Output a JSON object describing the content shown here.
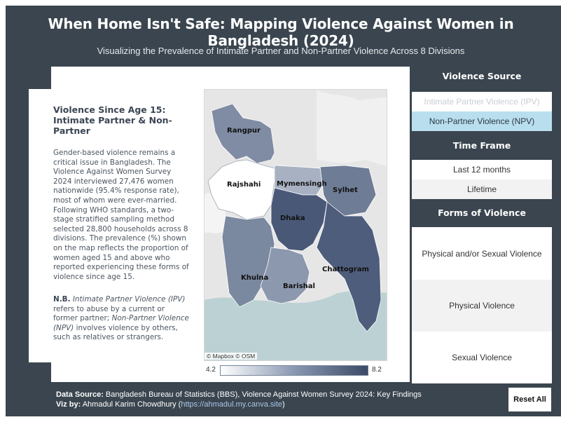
{
  "header": {
    "title": "When Home Isn't Safe: Mapping Violence Against Women in Bangladesh (2024)",
    "subtitle": "Visualizing the Prevalence of Intimate Partner and Non-Partner Violence Across 8 Divisions"
  },
  "info": {
    "heading": "Violence Since Age 15: Intimate Partner & Non-Partner",
    "body": "Gender-based violence remains a critical issue in Bangladesh. The Violence Against Women Survey 2024 interviewed 27,476 women nationwide (95.4% response rate), most of whom were ever-married. Following WHO standards, a two-stage stratified sampling method selected 28,800 households across 8 divisions. The prevalence (%) shown on the map reflects the proportion of women aged 15 and above who reported experiencing these forms of violence since age 15.",
    "note_label": "N.B.",
    "note_ipv_term": "Intimate Partner Violence (IPV)",
    "note_ipv_text": " refers to abuse by a current or former partner; ",
    "note_npv_term": "Non-Partner Violence (NPV)",
    "note_npv_text": " involves violence by others, such as relatives or strangers."
  },
  "map": {
    "credit": "© Mapbox © OSM",
    "legend_min": "4.2",
    "legend_max": "8.2",
    "colors": {
      "low": "#ffffff",
      "mid": "#8a98b2",
      "high": "#3b4a66",
      "water": "#bcd1d3",
      "land": "#e6e6e6"
    },
    "divisions": [
      {
        "name": "Rangpur"
      },
      {
        "name": "Rajshahi"
      },
      {
        "name": "Mymensingh"
      },
      {
        "name": "Sylhet"
      },
      {
        "name": "Dhaka"
      },
      {
        "name": "Khulna"
      },
      {
        "name": "Barishal"
      },
      {
        "name": "Chattogram"
      }
    ]
  },
  "filters": {
    "source_title": "Violence Source",
    "source_options": [
      "Intimate Partner Violence (IPV)",
      "Non-Partner Violence (NPV)"
    ],
    "source_selected": "Non-Partner Violence (NPV)",
    "time_title": "Time Frame",
    "time_options": [
      "Last 12 months",
      "Lifetime"
    ],
    "forms_title": "Forms of Violence",
    "forms_options": [
      "Physical and/or Sexual Violence",
      "Physical Violence",
      "Sexual Violence"
    ]
  },
  "footer": {
    "source_label": "Data Source:",
    "source_text": " Bangladesh Bureau of Statistics (BBS), Violence Against Women Survey 2024: Key Findings",
    "viz_label": "Viz by:",
    "viz_text": " Ahmadul Karim Chowdhury (",
    "viz_link": "https://ahmadul.my.canva.site",
    "viz_close": ")",
    "reset_label": "Reset All"
  }
}
